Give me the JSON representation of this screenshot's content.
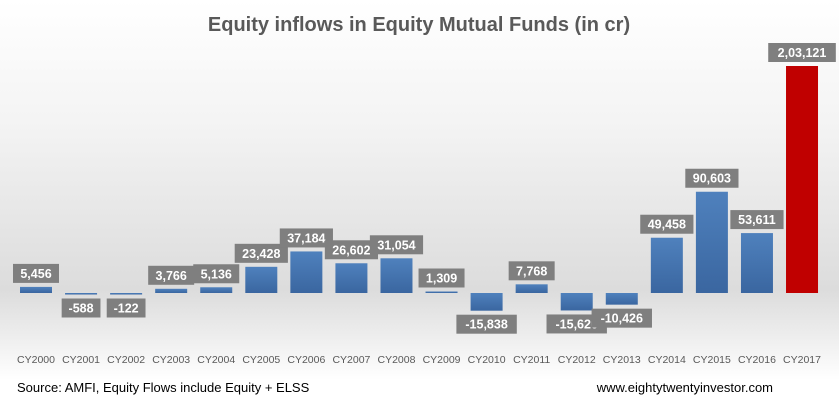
{
  "chart_data": {
    "type": "bar",
    "title": "Equity inflows in Equity Mutual Funds (in cr)",
    "xlabel": "",
    "ylabel": "",
    "categories": [
      "CY2000",
      "CY2001",
      "CY2002",
      "CY2003",
      "CY2004",
      "CY2005",
      "CY2006",
      "CY2007",
      "CY2008",
      "CY2009",
      "CY2010",
      "CY2011",
      "CY2012",
      "CY2013",
      "CY2014",
      "CY2015",
      "CY2016",
      "CY2017"
    ],
    "values": [
      5456,
      -588,
      -122,
      3766,
      5136,
      23428,
      37184,
      26602,
      31054,
      1309,
      -15838,
      7768,
      -15620,
      -10426,
      49458,
      90603,
      53611,
      203121
    ],
    "data_labels": [
      "5,456",
      "-588",
      "-122",
      "3,766",
      "5,136",
      "23,428",
      "37,184",
      "26,602",
      "31,054",
      "1,309",
      "-15,838",
      "7,768",
      "-15,620",
      "-10,426",
      "49,458",
      "90,603",
      "53,611",
      "2,03,121"
    ],
    "ylim": [
      -30000,
      210000
    ],
    "grid": false,
    "legend": "none",
    "colors": {
      "default": "#4a7ebb",
      "highlight": "#c00000",
      "label_box": "#7f7f7f"
    },
    "highlight_category": "CY2017"
  },
  "footer": {
    "source": "Source: AMFI, Equity Flows include Equity + ELSS",
    "website": "www.eightytwentyinvestor.com"
  }
}
